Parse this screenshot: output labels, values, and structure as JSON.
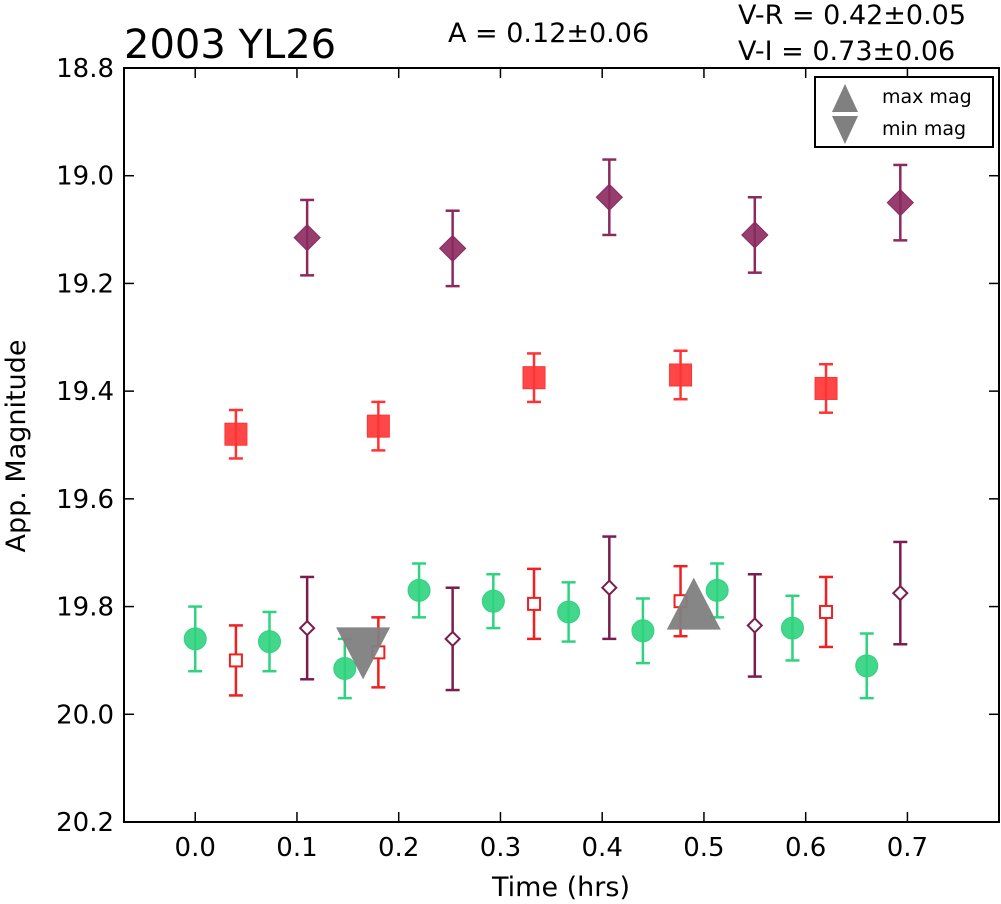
{
  "chart_data": {
    "type": "scatter",
    "title": "2003 YL26",
    "annotations": {
      "amplitude": "A  = 0.12±0.06",
      "v_r": "V-R = 0.42±0.05",
      "v_i": "V-I  = 0.73±0.06"
    },
    "xlabel": "Time (hrs)",
    "ylabel": "App. Magnitude",
    "xlim": [
      -0.07,
      0.79
    ],
    "ylim": [
      20.2,
      18.8
    ],
    "y_inverted": true,
    "xticks": [
      "0.0",
      "0.1",
      "0.2",
      "0.3",
      "0.4",
      "0.5",
      "0.6",
      "0.7"
    ],
    "xtick_values": [
      0.0,
      0.1,
      0.2,
      0.3,
      0.4,
      0.5,
      0.6,
      0.7
    ],
    "yticks": [
      "18.8",
      "19.0",
      "19.2",
      "19.4",
      "19.6",
      "19.8",
      "20.0",
      "20.2"
    ],
    "ytick_values": [
      18.8,
      19.0,
      19.2,
      19.4,
      19.6,
      19.8,
      20.0,
      20.2
    ],
    "grid": false,
    "legend": {
      "position": "top-right",
      "entries": [
        {
          "label": "max mag",
          "marker": "triangle-up",
          "color": "#808080"
        },
        {
          "label": "min mag",
          "marker": "triangle-down",
          "color": "#808080"
        }
      ]
    },
    "series": [
      {
        "marker": "circle",
        "filled": true,
        "color": "#2fd37e",
        "x": [
          0.0,
          0.073,
          0.147,
          0.22,
          0.293,
          0.367,
          0.44,
          0.513,
          0.587,
          0.66
        ],
        "y": [
          19.86,
          19.865,
          19.915,
          19.77,
          19.79,
          19.81,
          19.845,
          19.77,
          19.84,
          19.91
        ],
        "err": [
          0.06,
          0.055,
          0.055,
          0.05,
          0.05,
          0.055,
          0.06,
          0.05,
          0.06,
          0.06
        ]
      },
      {
        "marker": "square",
        "filled": false,
        "color": "#ee2020",
        "x": [
          0.04,
          0.18,
          0.333,
          0.477,
          0.62
        ],
        "y": [
          19.9,
          19.885,
          19.795,
          19.79,
          19.81
        ],
        "err": [
          0.065,
          0.065,
          0.065,
          0.065,
          0.065
        ]
      },
      {
        "marker": "diamond",
        "filled": false,
        "color": "#7a1d4e",
        "x": [
          0.11,
          0.253,
          0.407,
          0.55,
          0.693
        ],
        "y": [
          19.84,
          19.86,
          19.765,
          19.835,
          19.775
        ],
        "err": [
          0.095,
          0.095,
          0.095,
          0.095,
          0.095
        ]
      },
      {
        "marker": "square",
        "filled": true,
        "color": "#ff3333",
        "x": [
          0.04,
          0.18,
          0.333,
          0.477,
          0.62
        ],
        "y": [
          19.48,
          19.465,
          19.375,
          19.37,
          19.395
        ],
        "err": [
          0.045,
          0.045,
          0.045,
          0.045,
          0.045
        ]
      },
      {
        "marker": "diamond",
        "filled": true,
        "color": "#8b2a5f",
        "x": [
          0.11,
          0.253,
          0.407,
          0.55,
          0.693
        ],
        "y": [
          19.115,
          19.135,
          19.04,
          19.11,
          19.05
        ],
        "err": [
          0.07,
          0.07,
          0.07,
          0.07,
          0.07
        ]
      }
    ],
    "extrema": [
      {
        "type": "min mag",
        "marker": "triangle-down",
        "x": 0.165,
        "y": 19.885,
        "color": "#808080"
      },
      {
        "type": "max mag",
        "marker": "triangle-up",
        "x": 0.49,
        "y": 19.8,
        "color": "#808080"
      }
    ]
  }
}
